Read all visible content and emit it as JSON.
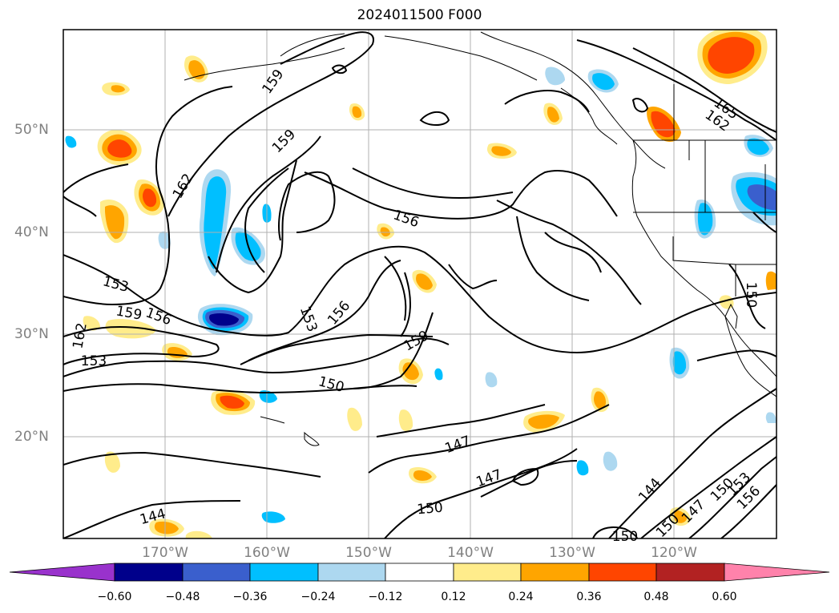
{
  "title": "2024011500 F000",
  "lat_labels": [
    "50°N",
    "40°N",
    "30°N",
    "20°N"
  ],
  "lon_labels": [
    "170°W",
    "160°W",
    "150°W",
    "140°W",
    "130°W",
    "120°W"
  ],
  "contour_labels": [
    "159",
    "159",
    "162",
    "156",
    "153",
    "159",
    "156",
    "153",
    "156",
    "162",
    "153",
    "150",
    "159",
    "147",
    "147",
    "150",
    "144",
    "144",
    "150",
    "147",
    "150",
    "153",
    "156",
    "150",
    "165",
    "162",
    "150"
  ],
  "colorbar": {
    "ticks": [
      "−0.60",
      "−0.48",
      "−0.36",
      "−0.24",
      "−0.12",
      "0.12",
      "0.24",
      "0.36",
      "0.48",
      "0.60"
    ],
    "colors": [
      "#9932cc",
      "#00008b",
      "#3a5fcd",
      "#00bfff",
      "#add8f0",
      "#ffffff",
      "#ffec8b",
      "#ffa500",
      "#ff4500",
      "#b22222",
      "#ff82ab"
    ]
  },
  "colors": {
    "contour": "#000000",
    "grid": "#b0b0b0",
    "coast": "#000000",
    "axis_label": "#808080"
  }
}
